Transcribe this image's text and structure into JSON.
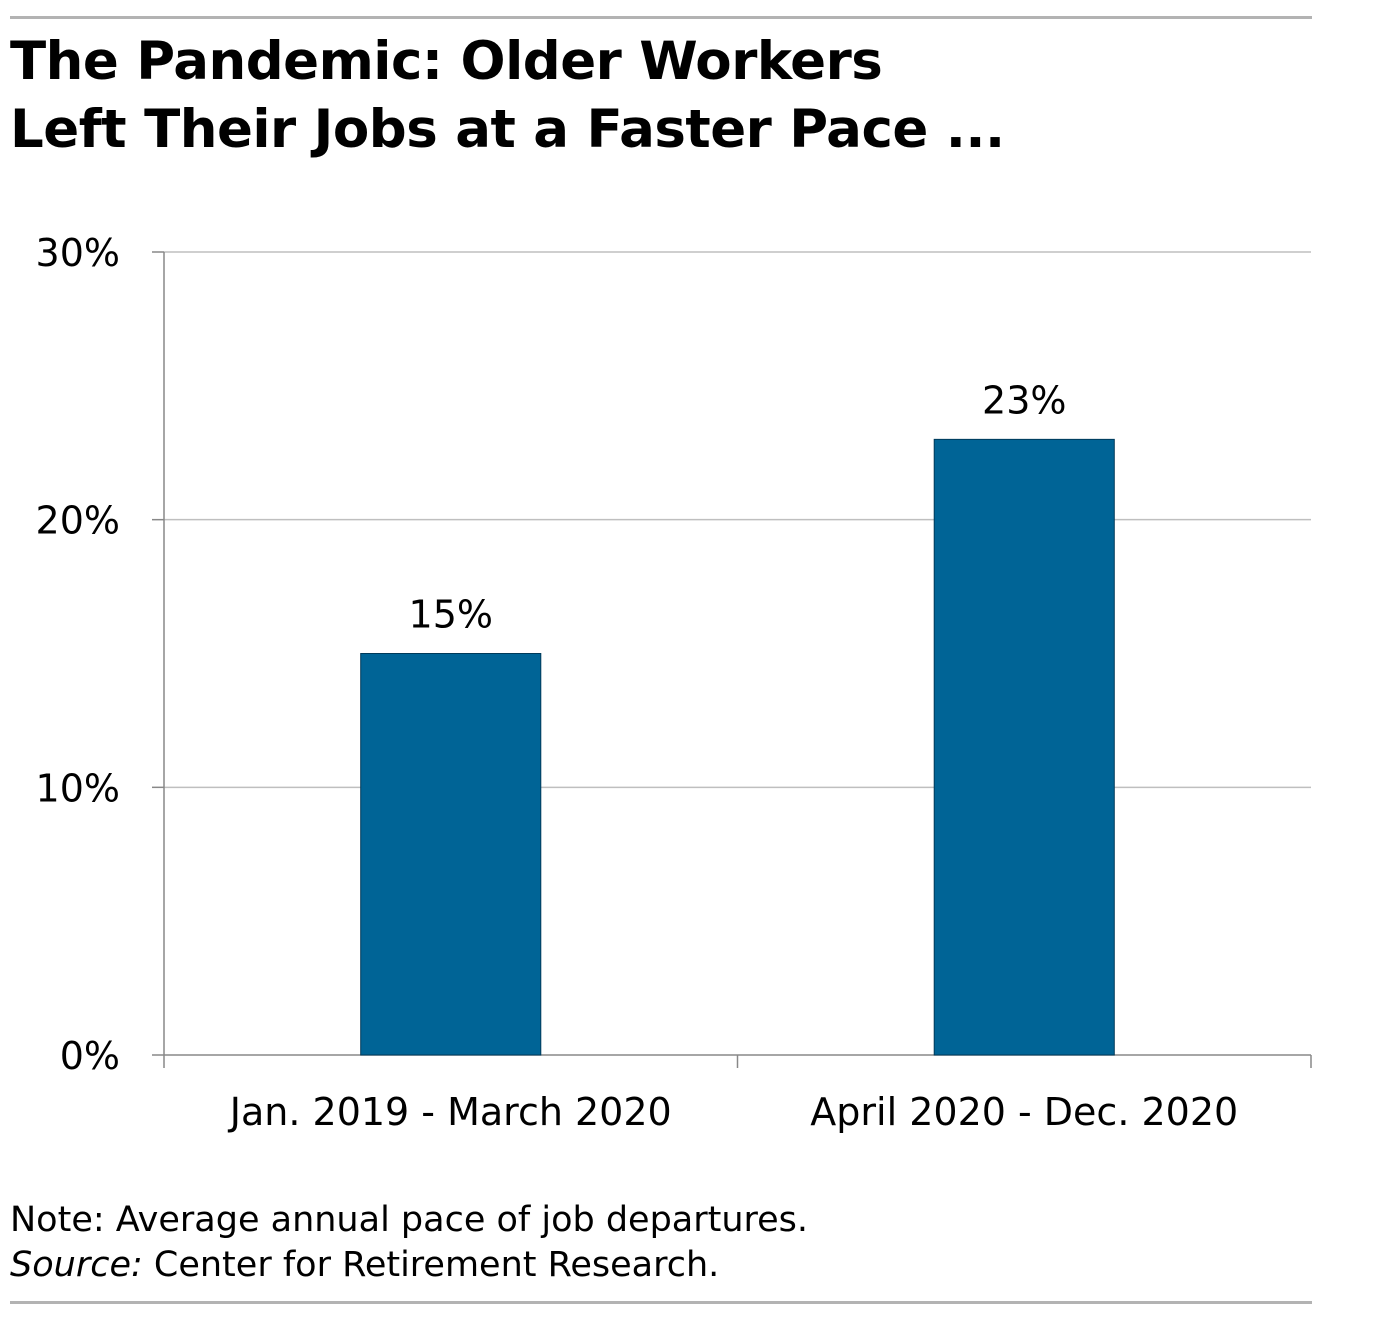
{
  "title": {
    "line1": "The Pandemic: Older Workers",
    "line2": "Left Their Jobs at a Faster Pace ..."
  },
  "note": "Note: Average annual pace of job departures.",
  "source": {
    "label": "Source:",
    "text": " Center for Retirement Research."
  },
  "colors": {
    "bar": "#006496",
    "grid": "#bfbfbf",
    "axis": "#888888"
  },
  "chart_data": {
    "type": "bar",
    "categories": [
      "Jan. 2019 - March 2020",
      "April 2020 - Dec. 2020"
    ],
    "values": [
      15,
      23
    ],
    "data_labels": [
      "15%",
      "23%"
    ],
    "y_ticks": [
      0,
      10,
      20,
      30
    ],
    "y_tick_labels": [
      "0%",
      "10%",
      "20%",
      "30%"
    ],
    "ylim": [
      0,
      30
    ],
    "grid": true,
    "legend": "none"
  }
}
